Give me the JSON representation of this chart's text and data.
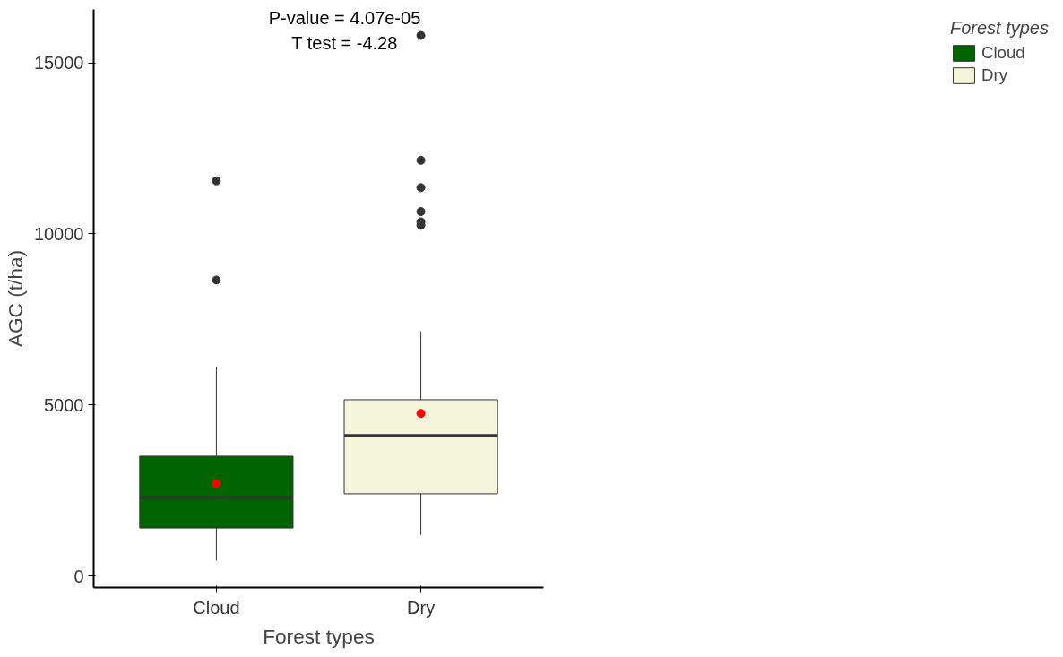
{
  "chart_data": {
    "type": "box",
    "xlabel": "Forest types",
    "ylabel": "AGC (t/ha)",
    "legend_title": "Forest types",
    "categories": [
      "Cloud",
      "Dry"
    ],
    "series": [
      {
        "name": "Cloud",
        "color": "#006400",
        "boxes": [
          {
            "low": 450,
            "q1": 1400,
            "median": 2300,
            "q3": 3500,
            "high": 6100,
            "mean": 2700,
            "outliers": [
              8650,
              11550
            ]
          },
          null
        ]
      },
      {
        "name": "Dry",
        "color": "#f5f5dc",
        "boxes": [
          null,
          {
            "low": 1200,
            "q1": 2400,
            "median": 4100,
            "q3": 5150,
            "high": 7150,
            "mean": 4750,
            "outliers": [
              10250,
              10350,
              10650,
              11350,
              12150,
              15800
            ]
          }
        ]
      }
    ],
    "ylim": [
      -340,
      16560
    ],
    "yticks": [
      0,
      5000,
      10000,
      15000
    ],
    "annotations": [
      "P-value = 4.07e-05",
      "T test = -4.28"
    ],
    "grid": false,
    "legend": "right"
  }
}
